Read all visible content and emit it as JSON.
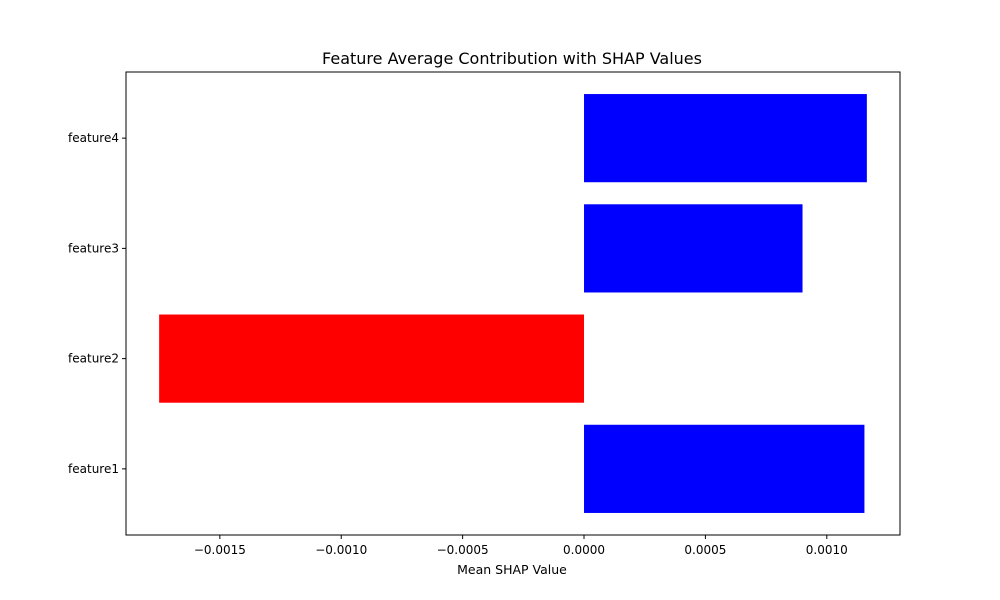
{
  "chart_data": {
    "type": "bar",
    "orientation": "horizontal",
    "title": "Feature Average Contribution with SHAP Values",
    "xlabel": "Mean SHAP Value",
    "ylabel": "",
    "categories": [
      "feature1",
      "feature2",
      "feature3",
      "feature4"
    ],
    "values": [
      0.001155,
      -0.00175,
      0.0009,
      0.001165
    ],
    "bar_colors": [
      "#0000ff",
      "#ff0000",
      "#0000ff",
      "#0000ff"
    ],
    "xlim": [
      -0.0018865,
      0.0013015
    ],
    "xticks": [
      -0.0015,
      -0.001,
      -0.0005,
      0.0,
      0.0005,
      0.001
    ],
    "xtick_labels": [
      "−0.0015",
      "−0.0010",
      "−0.0005",
      "0.0000",
      "0.0005",
      "0.0010"
    ],
    "grid": false,
    "legend": "none"
  }
}
